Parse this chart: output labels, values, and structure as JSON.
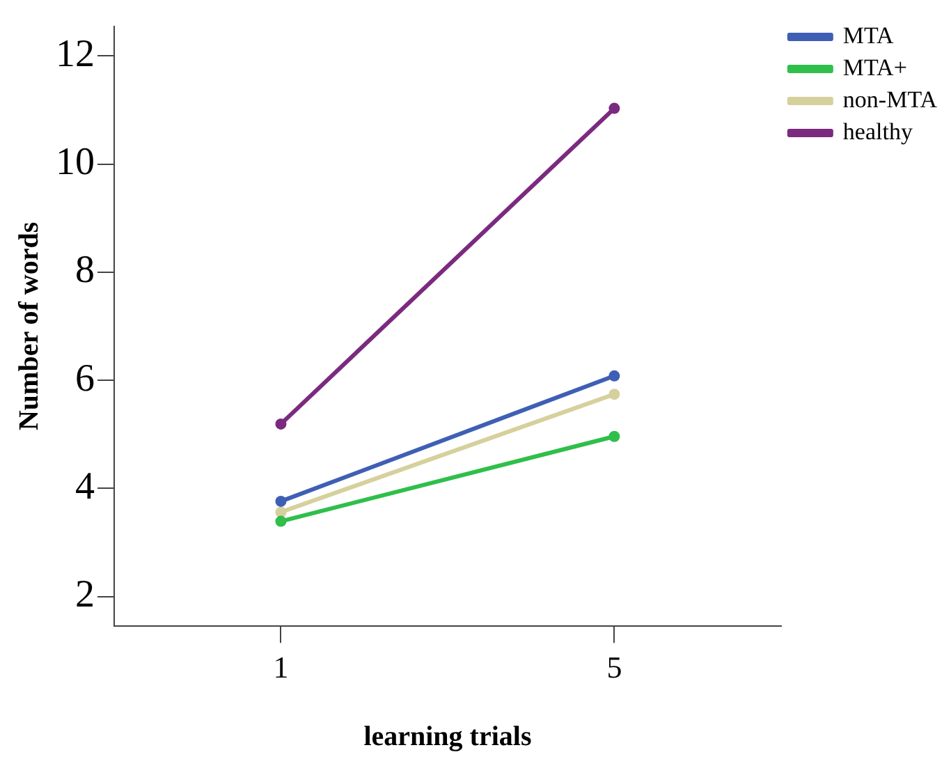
{
  "chart_data": {
    "type": "line",
    "xlabel": "learning trials",
    "ylabel": "Number of words",
    "categories": [
      "1",
      "5"
    ],
    "series": [
      {
        "name": "MTA",
        "color": "#3f5fb5",
        "values": [
          3.76,
          6.08
        ]
      },
      {
        "name": "MTA+",
        "color": "#2fbf4a",
        "values": [
          3.39,
          4.96
        ]
      },
      {
        "name": "non-MTA",
        "color": "#d6d09c",
        "values": [
          3.56,
          5.74
        ]
      },
      {
        "name": "healthy",
        "color": "#7b2a7f",
        "values": [
          5.19,
          11.03
        ]
      }
    ],
    "ylim": [
      1.45,
      12.55
    ],
    "yticks": [
      2,
      4,
      6,
      8,
      10,
      12
    ],
    "grid": false,
    "legend": "right",
    "marker": "circle",
    "line_style": "solid"
  }
}
